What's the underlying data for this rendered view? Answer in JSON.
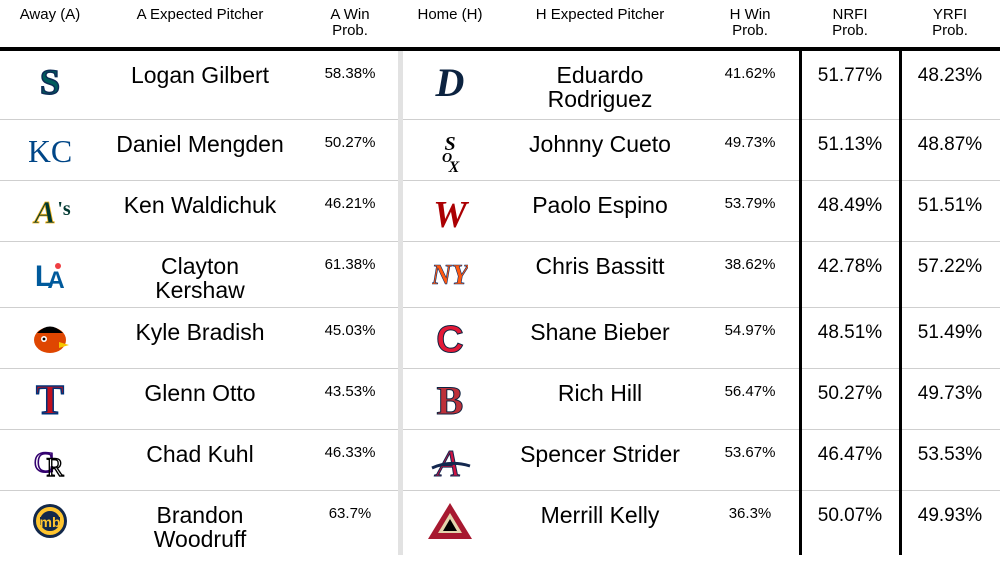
{
  "headers": {
    "away": "Away (A)",
    "a_pitcher": "A Expected Pitcher",
    "a_win": [
      "A Win",
      "Prob."
    ],
    "home": "Home (H)",
    "h_pitcher": "H Expected Pitcher",
    "h_win": [
      "H Win",
      "Prob."
    ],
    "nrfi": [
      "NRFI",
      "Prob."
    ],
    "yrfi": [
      "YRFI",
      "Prob."
    ]
  },
  "rows": [
    {
      "away_logo": "seattle-mariners-logo-icon",
      "away_pitcher": [
        "Logan Gilbert"
      ],
      "a_win": "58.38%",
      "home_logo": "detroit-tigers-logo-icon",
      "home_pitcher": [
        "Eduardo",
        "Rodriguez"
      ],
      "h_win": "41.62%",
      "nrfi": "51.77%",
      "yrfi": "48.23%"
    },
    {
      "away_logo": "kansas-city-royals-logo-icon",
      "away_pitcher": [
        "Daniel Mengden"
      ],
      "a_win": "50.27%",
      "home_logo": "chicago-white-sox-logo-icon",
      "home_pitcher": [
        "Johnny Cueto"
      ],
      "h_win": "49.73%",
      "nrfi": "51.13%",
      "yrfi": "48.87%"
    },
    {
      "away_logo": "oakland-athletics-logo-icon",
      "away_pitcher": [
        "Ken Waldichuk"
      ],
      "a_win": "46.21%",
      "home_logo": "washington-nationals-logo-icon",
      "home_pitcher": [
        "Paolo Espino"
      ],
      "h_win": "53.79%",
      "nrfi": "48.49%",
      "yrfi": "51.51%"
    },
    {
      "away_logo": "los-angeles-dodgers-logo-icon",
      "away_pitcher": [
        "Clayton",
        "Kershaw"
      ],
      "a_win": "61.38%",
      "home_logo": "new-york-mets-logo-icon",
      "home_pitcher": [
        "Chris Bassitt"
      ],
      "h_win": "38.62%",
      "nrfi": "42.78%",
      "yrfi": "57.22%"
    },
    {
      "away_logo": "baltimore-orioles-logo-icon",
      "away_pitcher": [
        "Kyle Bradish"
      ],
      "a_win": "45.03%",
      "home_logo": "cleveland-guardians-logo-icon",
      "home_pitcher": [
        "Shane Bieber"
      ],
      "h_win": "54.97%",
      "nrfi": "48.51%",
      "yrfi": "51.49%"
    },
    {
      "away_logo": "texas-rangers-logo-icon",
      "away_pitcher": [
        "Glenn Otto"
      ],
      "a_win": "43.53%",
      "home_logo": "boston-red-sox-logo-icon",
      "home_pitcher": [
        "Rich Hill"
      ],
      "h_win": "56.47%",
      "nrfi": "50.27%",
      "yrfi": "49.73%"
    },
    {
      "away_logo": "colorado-rockies-logo-icon",
      "away_pitcher": [
        "Chad Kuhl"
      ],
      "a_win": "46.33%",
      "home_logo": "atlanta-braves-logo-icon",
      "home_pitcher": [
        "Spencer Strider"
      ],
      "h_win": "53.67%",
      "nrfi": "46.47%",
      "yrfi": "53.53%"
    },
    {
      "away_logo": "milwaukee-brewers-logo-icon",
      "away_pitcher": [
        "Brandon",
        "Woodruff"
      ],
      "a_win": "63.7%",
      "home_logo": "arizona-diamondbacks-logo-icon",
      "home_pitcher": [
        "Merrill Kelly"
      ],
      "h_win": "36.3%",
      "nrfi": "50.07%",
      "yrfi": "49.93%"
    }
  ],
  "colors": {
    "mariners": "#0C2C56",
    "mariners_teal": "#005C5C",
    "tigers": "#0C2340",
    "royals": "#004687",
    "athletics": "#003831",
    "athletics_gold": "#EFB21E",
    "nationals": "#AB0003",
    "dodgers": "#005A9C",
    "dodgers_red": "#EF3E42",
    "mets": "#FF5910",
    "mets_blue": "#002D72",
    "orioles": "#DF4601",
    "guardians": "#E31937",
    "guardians_navy": "#0C2340",
    "rangers": "#C0111F",
    "rangers_blue": "#003278",
    "redsox": "#BD3039",
    "redsox_navy": "#0C2340",
    "rockies": "#33006F",
    "braves": "#CE1141",
    "braves_navy": "#13274F",
    "brewers": "#12284B",
    "brewers_gold": "#FFC52F",
    "dbacks": "#A71930",
    "dbacks_sand": "#E3D4AD"
  }
}
